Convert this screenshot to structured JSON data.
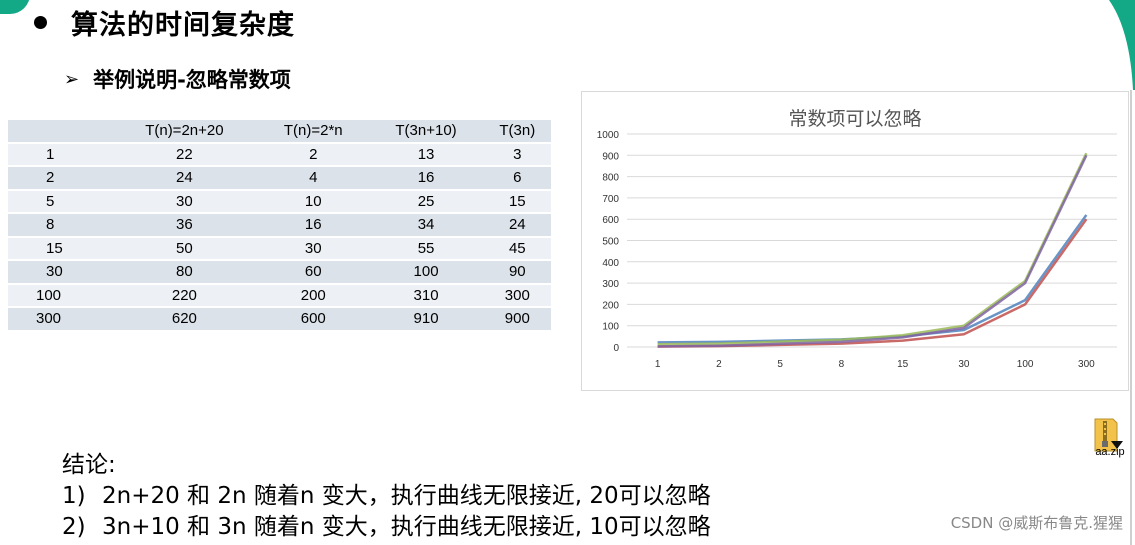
{
  "heading": "算法的时间复杂度",
  "subheading": "举例说明-忽略常数项",
  "table": {
    "headers": [
      "",
      "T(n)=2n+20",
      "T(n)=2*n",
      "T(3n+10)",
      "T(3n)"
    ],
    "rows": [
      [
        "1",
        "22",
        "2",
        "13",
        "3"
      ],
      [
        "2",
        "24",
        "4",
        "16",
        "6"
      ],
      [
        "5",
        "30",
        "10",
        "25",
        "15"
      ],
      [
        "8",
        "36",
        "16",
        "34",
        "24"
      ],
      [
        "15",
        "50",
        "30",
        "55",
        "45"
      ],
      [
        "30",
        "80",
        "60",
        "100",
        "90"
      ],
      [
        "100",
        "220",
        "200",
        "310",
        "300"
      ],
      [
        "300",
        "620",
        "600",
        "910",
        "900"
      ]
    ]
  },
  "chart_data": {
    "type": "line",
    "title": "常数项可以忽略",
    "categories": [
      "1",
      "2",
      "5",
      "8",
      "15",
      "30",
      "100",
      "300"
    ],
    "ylim": [
      0,
      1000
    ],
    "yticks": [
      0,
      100,
      200,
      300,
      400,
      500,
      600,
      700,
      800,
      900,
      1000
    ],
    "grid": true,
    "series": [
      {
        "values": [
          22,
          24,
          30,
          36,
          50,
          80,
          220,
          620
        ],
        "color": "#4f81bd"
      },
      {
        "values": [
          2,
          4,
          10,
          16,
          30,
          60,
          200,
          600
        ],
        "color": "#c0504d"
      },
      {
        "values": [
          13,
          16,
          25,
          34,
          55,
          100,
          310,
          910
        ],
        "color": "#9bbb59"
      },
      {
        "values": [
          3,
          6,
          15,
          24,
          45,
          90,
          300,
          900
        ],
        "color": "#8064a2"
      }
    ]
  },
  "file": {
    "label": "aa.zip",
    "icon": "zip-folder-icon"
  },
  "conclusion": {
    "title": "结论:",
    "items": [
      {
        "num": "1)",
        "text": "2n+20 和 2n 随着n 变大，执行曲线无限接近, 20可以忽略"
      },
      {
        "num": "2)",
        "text": "3n+10 和 3n 随着n 变大，执行曲线无限接近, 10可以忽略"
      }
    ]
  },
  "watermark": "CSDN @威斯布鲁克.猩猩",
  "colors": {
    "accent": "#13a886",
    "grid": "#d9d9d9"
  }
}
